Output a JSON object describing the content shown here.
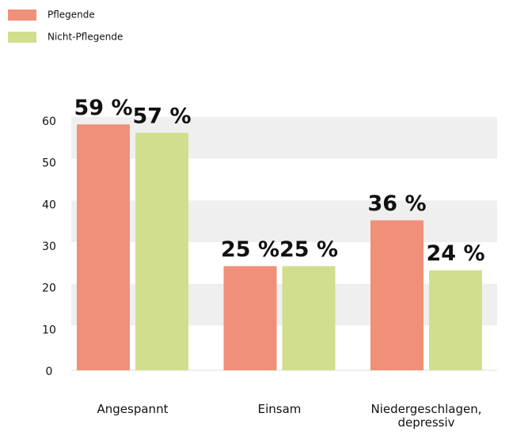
{
  "chart_data": {
    "type": "bar",
    "categories": [
      "Angespannt",
      "Einsam",
      "Niedergeschlagen, depressiv"
    ],
    "series": [
      {
        "name": "Pflegende",
        "color": "#f09079",
        "values": [
          59,
          25,
          36
        ],
        "value_labels": [
          "59 %",
          "25 %",
          "36 %"
        ]
      },
      {
        "name": "Nicht-Pflegende",
        "color": "#d1de8e",
        "values": [
          57,
          25,
          24
        ],
        "value_labels": [
          "57 %",
          "25 %",
          "24 %"
        ]
      }
    ],
    "ylim": [
      0,
      60
    ],
    "yticks": [
      0,
      10,
      20,
      30,
      40,
      50,
      60
    ],
    "grid": true,
    "legend": "top-left"
  }
}
